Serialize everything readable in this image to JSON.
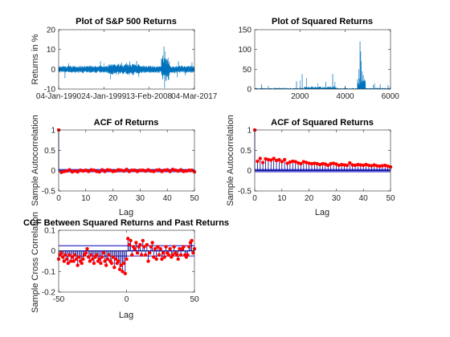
{
  "figure": {
    "background": "#ffffff"
  },
  "colors": {
    "blue": "#0072BD",
    "red": "#ff0000",
    "navy": "#00008B",
    "axis": "#262626",
    "grid": "#000000"
  },
  "chart_data": [
    {
      "id": "returns",
      "type": "line",
      "title": "Plot of S&P 500 Returns",
      "xlabel": "",
      "ylabel": "Returns in %",
      "xlim": [
        0,
        6010
      ],
      "ylim": [
        -10,
        20
      ],
      "yticks": [
        -10,
        0,
        10,
        20
      ],
      "xtick_positions": [
        0,
        2000,
        4000,
        6000
      ],
      "xtick_labels": [
        "04-Jan-1990",
        "24-Jan-1999",
        "13-Feb-2008",
        "04-Mar-2017"
      ],
      "series": [
        {
          "n": 6000,
          "spikes": [
            [
              280,
              -4.5
            ],
            [
              450,
              3
            ],
            [
              1850,
              4
            ],
            [
              2000,
              3
            ],
            [
              2300,
              -5
            ],
            [
              2800,
              3.5
            ],
            [
              3150,
              4
            ],
            [
              3450,
              4.2
            ],
            [
              3550,
              -4
            ],
            [
              4600,
              7
            ],
            [
              4660,
              11.5
            ],
            [
              4690,
              -9.5
            ],
            [
              4720,
              9
            ],
            [
              4760,
              -6
            ],
            [
              4800,
              5
            ],
            [
              4900,
              4
            ],
            [
              5250,
              -4
            ],
            [
              5300,
              4
            ],
            [
              5600,
              -3
            ],
            [
              5900,
              3.5
            ]
          ]
        }
      ]
    },
    {
      "id": "squared",
      "type": "line",
      "title": "Plot of Squared Returns",
      "xlabel": "",
      "ylabel": "",
      "xlim": [
        0,
        6010
      ],
      "ylim": [
        0,
        150
      ],
      "yticks": [
        0,
        50,
        100,
        150
      ],
      "xtick_positions": [
        2000,
        4000,
        6000
      ],
      "xtick_labels": [
        "2000",
        "4000",
        "6000"
      ],
      "series": [
        {
          "n": 6000,
          "spikes": [
            [
              300,
              12
            ],
            [
              600,
              8
            ],
            [
              1850,
              20
            ],
            [
              2000,
              22
            ],
            [
              2100,
              38
            ],
            [
              2300,
              28
            ],
            [
              2800,
              15
            ],
            [
              3150,
              18
            ],
            [
              3450,
              38
            ],
            [
              3550,
              18
            ],
            [
              4000,
              8
            ],
            [
              4550,
              25
            ],
            [
              4600,
              50
            ],
            [
              4660,
              120
            ],
            [
              4690,
              95
            ],
            [
              4720,
              70
            ],
            [
              4760,
              45
            ],
            [
              4800,
              35
            ],
            [
              4850,
              25
            ],
            [
              4900,
              18
            ],
            [
              5250,
              10
            ],
            [
              5300,
              14
            ],
            [
              5550,
              12
            ],
            [
              5900,
              10
            ]
          ]
        }
      ]
    },
    {
      "id": "acf-returns",
      "type": "stem",
      "title": "ACF of Returns",
      "xlabel": "Lag",
      "ylabel": "Sample Autocorrelation",
      "xlim": [
        0,
        50
      ],
      "ylim": [
        -0.5,
        1
      ],
      "xticks": [
        0,
        10,
        20,
        30,
        40,
        50
      ],
      "yticks": [
        -0.5,
        0,
        0.5,
        1
      ],
      "bounds": [
        0.028,
        -0.028
      ],
      "x": [
        0,
        1,
        2,
        3,
        4,
        5,
        6,
        7,
        8,
        9,
        10,
        11,
        12,
        13,
        14,
        15,
        16,
        17,
        18,
        19,
        20,
        21,
        22,
        23,
        24,
        25,
        26,
        27,
        28,
        29,
        30,
        31,
        32,
        33,
        34,
        35,
        36,
        37,
        38,
        39,
        40,
        41,
        42,
        43,
        44,
        45,
        46,
        47,
        48,
        49,
        50
      ],
      "values": [
        1,
        -0.04,
        -0.02,
        -0.01,
        0.02,
        -0.03,
        -0.01,
        -0.03,
        0.01,
        -0.01,
        0.01,
        -0.02,
        0.02,
        0.01,
        -0.02,
        -0.03,
        0.02,
        -0.02,
        0.02,
        0.01,
        -0.02,
        -0.01,
        0.02,
        0.01,
        -0.01,
        0.03,
        -0.02,
        0.01,
        0.01,
        -0.02,
        0.01,
        0.01,
        -0.01,
        0.02,
        -0.01,
        -0.02,
        0.01,
        0.02,
        -0.02,
        0.01,
        0.02,
        -0.02,
        0.03,
        0.01,
        -0.01,
        0.02,
        -0.02,
        -0.01,
        0.01,
        0.01,
        -0.03
      ]
    },
    {
      "id": "acf-squared",
      "type": "stem",
      "title": "ACF of Squared Returns",
      "xlabel": "Lag",
      "ylabel": "Sample Autocorrelation",
      "xlim": [
        0,
        50
      ],
      "ylim": [
        -0.5,
        1
      ],
      "xticks": [
        0,
        10,
        20,
        30,
        40,
        50
      ],
      "yticks": [
        -0.5,
        0,
        0.5,
        1
      ],
      "bounds": [
        0.028,
        -0.028
      ],
      "x": [
        0,
        1,
        2,
        3,
        4,
        5,
        6,
        7,
        8,
        9,
        10,
        11,
        12,
        13,
        14,
        15,
        16,
        17,
        18,
        19,
        20,
        21,
        22,
        23,
        24,
        25,
        26,
        27,
        28,
        29,
        30,
        31,
        32,
        33,
        34,
        35,
        36,
        37,
        38,
        39,
        40,
        41,
        42,
        43,
        44,
        45,
        46,
        47,
        48,
        49,
        50
      ],
      "values": [
        1,
        0.23,
        0.3,
        0.2,
        0.29,
        0.27,
        0.26,
        0.3,
        0.25,
        0.27,
        0.22,
        0.27,
        0.18,
        0.21,
        0.23,
        0.22,
        0.19,
        0.17,
        0.22,
        0.2,
        0.18,
        0.17,
        0.18,
        0.17,
        0.15,
        0.17,
        0.16,
        0.13,
        0.17,
        0.18,
        0.16,
        0.13,
        0.15,
        0.14,
        0.13,
        0.19,
        0.14,
        0.13,
        0.15,
        0.14,
        0.13,
        0.15,
        0.13,
        0.12,
        0.14,
        0.12,
        0.11,
        0.12,
        0.13,
        0.11,
        0.09
      ]
    },
    {
      "id": "ccf",
      "type": "stem",
      "title": "CCF Between Squared Returns and Past Returns",
      "xlabel": "Lag",
      "ylabel": "Sample Cross Correlation",
      "xlim": [
        -50,
        50
      ],
      "ylim": [
        -0.2,
        0.1
      ],
      "xticks": [
        -50,
        0,
        50
      ],
      "yticks": [
        -0.2,
        -0.1,
        0,
        0.1
      ],
      "bounds": [
        0.025,
        -0.025
      ],
      "x": [
        -50,
        -49,
        -48,
        -47,
        -46,
        -45,
        -44,
        -43,
        -42,
        -41,
        -40,
        -39,
        -38,
        -37,
        -36,
        -35,
        -34,
        -33,
        -32,
        -31,
        -30,
        -29,
        -28,
        -27,
        -26,
        -25,
        -24,
        -23,
        -22,
        -21,
        -20,
        -19,
        -18,
        -17,
        -16,
        -15,
        -14,
        -13,
        -12,
        -11,
        -10,
        -9,
        -8,
        -7,
        -6,
        -5,
        -4,
        -3,
        -2,
        -1,
        0,
        1,
        2,
        3,
        4,
        5,
        6,
        7,
        8,
        9,
        10,
        11,
        12,
        13,
        14,
        15,
        16,
        17,
        18,
        19,
        20,
        21,
        22,
        23,
        24,
        25,
        26,
        27,
        28,
        29,
        30,
        31,
        32,
        33,
        34,
        35,
        36,
        37,
        38,
        39,
        40,
        41,
        42,
        43,
        44,
        45,
        46,
        47,
        48,
        49,
        50
      ],
      "values": [
        -0.04,
        -0.02,
        -0.01,
        -0.03,
        -0.05,
        -0.02,
        -0.04,
        -0.06,
        -0.02,
        -0.05,
        -0.03,
        -0.05,
        -0.02,
        -0.04,
        -0.07,
        -0.03,
        -0.05,
        -0.06,
        -0.04,
        -0.02,
        -0.01,
        0.01,
        -0.03,
        -0.05,
        -0.02,
        -0.04,
        -0.06,
        -0.03,
        -0.02,
        -0.05,
        -0.04,
        -0.06,
        -0.03,
        -0.01,
        -0.05,
        -0.07,
        -0.04,
        -0.02,
        -0.05,
        -0.06,
        -0.03,
        -0.08,
        -0.04,
        -0.06,
        -0.05,
        -0.09,
        -0.07,
        -0.1,
        -0.06,
        -0.11,
        -0.04,
        0.06,
        0.03,
        0.05,
        -0.02,
        0.02,
        0.01,
        0.04,
        -0.01,
        0.02,
        0.03,
        -0.02,
        0.05,
        0.02,
        -0.02,
        0.03,
        -0.05,
        -0.01,
        0.02,
        0.04,
        -0.03,
        0.01,
        -0.04,
        0.02,
        -0.02,
        0.01,
        -0.04,
        -0.01,
        -0.03,
        0.02,
        -0.01,
        -0.02,
        0.01,
        -0.03,
        -0.02,
        0.02,
        -0.01,
        -0.02,
        -0.04,
        0.01,
        -0.02,
        0.01,
        0.02,
        -0.02,
        -0.03,
        -0.02,
        0.02,
        0.04,
        0.05,
        -0.01,
        0.01
      ]
    }
  ]
}
